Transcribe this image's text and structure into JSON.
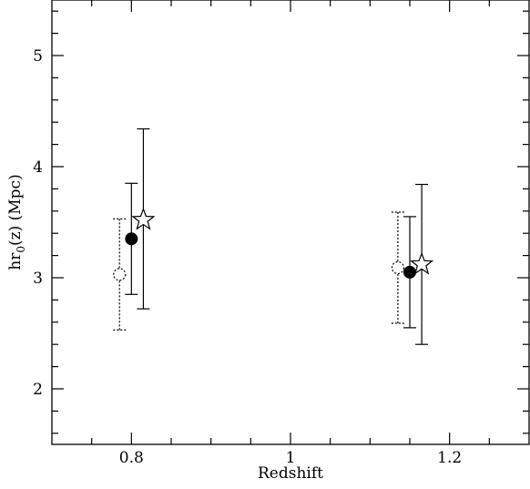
{
  "chart_data": {
    "type": "scatter",
    "xlabel": "Redshift",
    "ylabel": "hr",
    "ylabel_sub": "0",
    "ylabel_rest": "(z) (Mpc)",
    "xlim": [
      0.7,
      1.3
    ],
    "ylim": [
      1.5,
      5.5
    ],
    "x_major_ticks": [
      0.8,
      1.0,
      1.2
    ],
    "x_tick_labels": [
      "0.8",
      "1",
      "1.2"
    ],
    "x_minor_ticks": [
      0.75,
      0.85,
      0.9,
      0.95,
      1.05,
      1.1,
      1.15,
      1.25
    ],
    "y_major_ticks": [
      2,
      3,
      4,
      5
    ],
    "y_tick_labels": [
      "2",
      "3",
      "4",
      "5"
    ],
    "y_minor_ticks": [
      1.6,
      1.8,
      2.2,
      2.4,
      2.6,
      2.8,
      3.2,
      3.4,
      3.6,
      3.8,
      4.2,
      4.4,
      4.6,
      4.8,
      5.2,
      5.4
    ],
    "grid": false,
    "series": [
      {
        "marker": "open-circle",
        "line": "dotted",
        "points": [
          {
            "x": 0.785,
            "y": 3.03,
            "ylow": 2.53,
            "yhigh": 3.53
          },
          {
            "x": 1.135,
            "y": 3.09,
            "ylow": 2.59,
            "yhigh": 3.59
          }
        ]
      },
      {
        "marker": "filled-circle",
        "line": "solid",
        "points": [
          {
            "x": 0.8,
            "y": 3.35,
            "ylow": 2.85,
            "yhigh": 3.85
          },
          {
            "x": 1.15,
            "y": 3.05,
            "ylow": 2.55,
            "yhigh": 3.55
          }
        ]
      },
      {
        "marker": "open-star",
        "line": "solid",
        "points": [
          {
            "x": 0.815,
            "y": 3.52,
            "ylow": 2.72,
            "yhigh": 4.34
          },
          {
            "x": 1.165,
            "y": 3.12,
            "ylow": 2.4,
            "yhigh": 3.84
          }
        ]
      }
    ]
  }
}
